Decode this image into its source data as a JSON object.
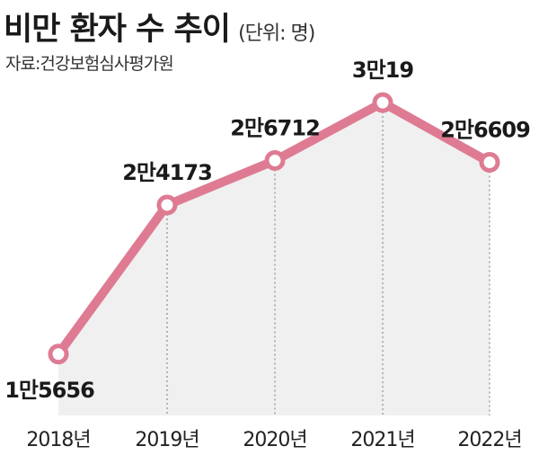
{
  "header": {
    "title": "비만 환자 수 추이",
    "unit": "(단위: 명)",
    "source": "자료:건강보험심사평가원"
  },
  "colors": {
    "line": "#de7b93",
    "fill": "#f0f0f0",
    "marker_fill": "#ffffff",
    "gridline": "#777777"
  },
  "chart_data": {
    "type": "line",
    "categories": [
      "2018년",
      "2019년",
      "2020년",
      "2021년",
      "2022년"
    ],
    "values": [
      15656,
      24173,
      26712,
      30019,
      26609
    ],
    "data_labels": [
      "1만5656",
      "2만4173",
      "2만6712",
      "3만19",
      "2만6609"
    ],
    "ylim": [
      12000,
      31000
    ],
    "grid": false,
    "legend": "none"
  }
}
